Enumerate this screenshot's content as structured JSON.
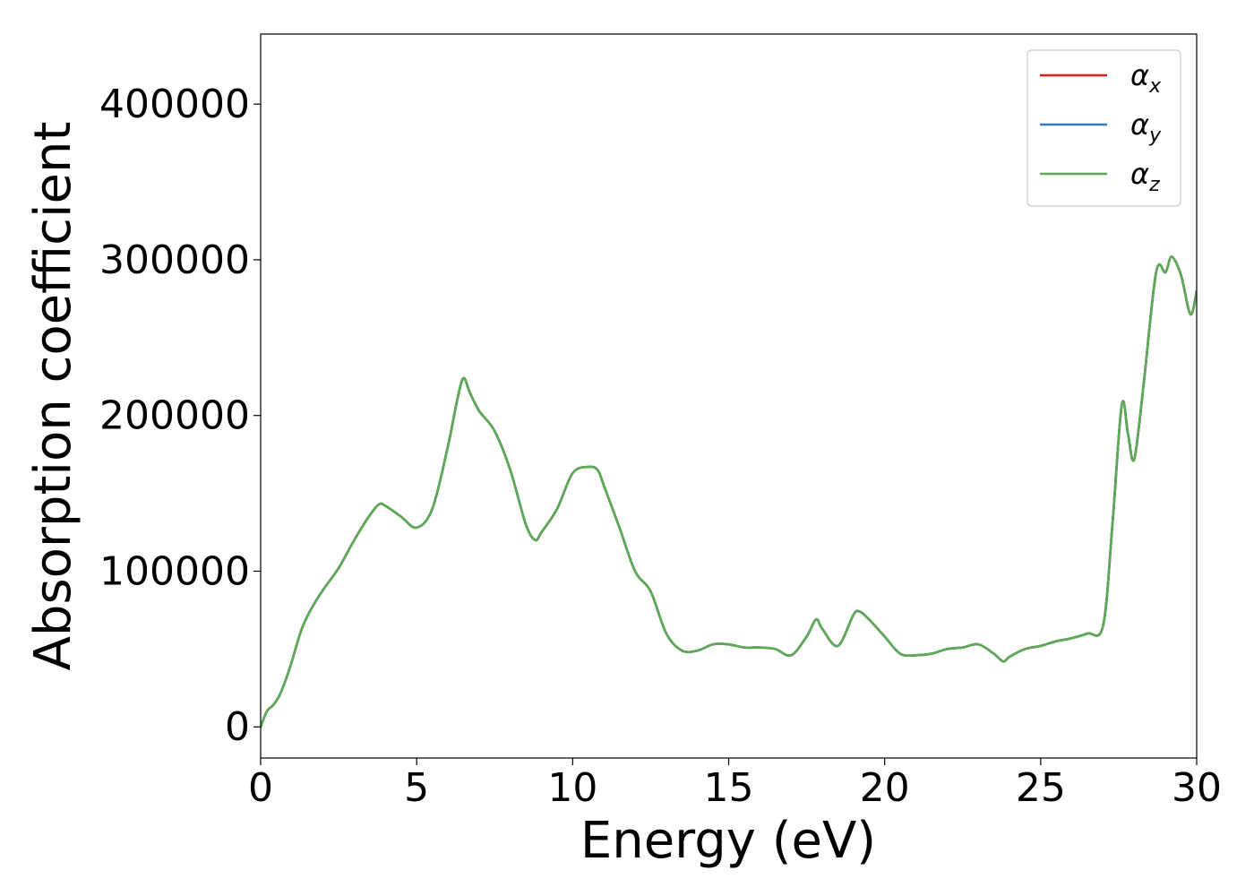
{
  "chart_data": {
    "type": "line",
    "xlabel": "Energy (eV)",
    "ylabel": "Absorption coefficient",
    "xlim": [
      0,
      30
    ],
    "ylim": [
      -20000,
      445000
    ],
    "xticks": [
      0,
      5,
      10,
      15,
      20,
      25,
      30
    ],
    "yticks": [
      0,
      100000,
      200000,
      300000,
      400000
    ],
    "grid": false,
    "legend_position": "top-right",
    "series": [
      {
        "name": "α",
        "subscript": "x",
        "color": "#e41a1c",
        "x": [
          0,
          0.2,
          0.4,
          0.6,
          0.8,
          1.0,
          1.3,
          1.6,
          2.0,
          2.5,
          3.0,
          3.5,
          3.8,
          4.0,
          4.5,
          5.0,
          5.5,
          6.0,
          6.3,
          6.5,
          6.7,
          7.0,
          7.5,
          8.0,
          8.5,
          8.8,
          9.0,
          9.5,
          10.0,
          10.5,
          10.8,
          11.0,
          11.5,
          12.0,
          12.5,
          13.0,
          13.5,
          14.0,
          14.5,
          15.0,
          15.5,
          16.0,
          16.5,
          17.0,
          17.5,
          17.8,
          18.0,
          18.5,
          19.0,
          19.2,
          19.5,
          20.0,
          20.5,
          21.0,
          21.5,
          22.0,
          22.5,
          23.0,
          23.5,
          23.8,
          24.0,
          24.5,
          25.0,
          25.5,
          26.0,
          26.5,
          27.0,
          27.3,
          27.6,
          27.8,
          28.0,
          28.3,
          28.7,
          29.0,
          29.2,
          29.5,
          29.8,
          30.0
        ],
        "y": [
          0,
          10000,
          14000,
          20000,
          30000,
          42000,
          62000,
          75000,
          88000,
          102000,
          120000,
          136000,
          143000,
          142000,
          135000,
          128000,
          140000,
          180000,
          210000,
          224000,
          215000,
          203000,
          190000,
          165000,
          130000,
          120000,
          125000,
          140000,
          163000,
          167000,
          165000,
          155000,
          128000,
          100000,
          87000,
          60000,
          49000,
          49000,
          53000,
          53000,
          51000,
          51000,
          50000,
          46000,
          58000,
          69000,
          63000,
          52000,
          72000,
          74000,
          69000,
          58000,
          47000,
          46000,
          47000,
          50000,
          51000,
          53000,
          47000,
          42000,
          45000,
          50000,
          52000,
          55000,
          57000,
          60000,
          65000,
          130000,
          207000,
          188000,
          172000,
          220000,
          292000,
          292000,
          302000,
          290000,
          265000,
          280000
        ]
      },
      {
        "name": "α",
        "subscript": "y",
        "color": "#377eb8",
        "x": [
          0,
          0.2,
          0.4,
          0.6,
          0.8,
          1.0,
          1.3,
          1.6,
          2.0,
          2.5,
          3.0,
          3.5,
          3.8,
          4.0,
          4.5,
          5.0,
          5.5,
          6.0,
          6.3,
          6.5,
          6.7,
          7.0,
          7.5,
          8.0,
          8.5,
          8.8,
          9.0,
          9.5,
          10.0,
          10.5,
          10.8,
          11.0,
          11.5,
          12.0,
          12.5,
          13.0,
          13.5,
          14.0,
          14.5,
          15.0,
          15.5,
          16.0,
          16.5,
          17.0,
          17.5,
          17.8,
          18.0,
          18.5,
          19.0,
          19.2,
          19.5,
          20.0,
          20.5,
          21.0,
          21.5,
          22.0,
          22.5,
          23.0,
          23.5,
          23.8,
          24.0,
          24.5,
          25.0,
          25.5,
          26.0,
          26.5,
          27.0,
          27.3,
          27.6,
          27.8,
          28.0,
          28.3,
          28.7,
          29.0,
          29.2,
          29.5,
          29.8,
          30.0
        ],
        "y": [
          0,
          10000,
          14000,
          20000,
          30000,
          42000,
          62000,
          75000,
          88000,
          102000,
          120000,
          136000,
          143000,
          142000,
          135000,
          128000,
          140000,
          180000,
          210000,
          224000,
          215000,
          203000,
          190000,
          165000,
          130000,
          120000,
          125000,
          140000,
          163000,
          167000,
          165000,
          155000,
          128000,
          100000,
          87000,
          60000,
          49000,
          49000,
          53000,
          53000,
          51000,
          51000,
          50000,
          46000,
          58000,
          69000,
          63000,
          52000,
          72000,
          74000,
          69000,
          58000,
          47000,
          46000,
          47000,
          50000,
          51000,
          53000,
          47000,
          42000,
          45000,
          50000,
          52000,
          55000,
          57000,
          60000,
          65000,
          130000,
          207000,
          188000,
          172000,
          220000,
          292000,
          292000,
          302000,
          290000,
          265000,
          280000
        ]
      },
      {
        "name": "α",
        "subscript": "z",
        "color": "#5daa55",
        "x": [
          0,
          0.2,
          0.4,
          0.6,
          0.8,
          1.0,
          1.3,
          1.6,
          2.0,
          2.5,
          3.0,
          3.5,
          3.8,
          4.0,
          4.5,
          5.0,
          5.5,
          6.0,
          6.3,
          6.5,
          6.7,
          7.0,
          7.5,
          8.0,
          8.5,
          8.8,
          9.0,
          9.5,
          10.0,
          10.5,
          10.8,
          11.0,
          11.5,
          12.0,
          12.5,
          13.0,
          13.5,
          14.0,
          14.5,
          15.0,
          15.5,
          16.0,
          16.5,
          17.0,
          17.5,
          17.8,
          18.0,
          18.5,
          19.0,
          19.2,
          19.5,
          20.0,
          20.5,
          21.0,
          21.5,
          22.0,
          22.5,
          23.0,
          23.5,
          23.8,
          24.0,
          24.5,
          25.0,
          25.5,
          26.0,
          26.5,
          27.0,
          27.3,
          27.6,
          27.8,
          28.0,
          28.3,
          28.7,
          29.0,
          29.2,
          29.5,
          29.8,
          30.0
        ],
        "y": [
          0,
          10000,
          14000,
          20000,
          30000,
          42000,
          62000,
          75000,
          88000,
          102000,
          120000,
          136000,
          143000,
          142000,
          135000,
          128000,
          140000,
          180000,
          210000,
          224000,
          215000,
          203000,
          190000,
          165000,
          130000,
          120000,
          125000,
          140000,
          163000,
          167000,
          165000,
          155000,
          128000,
          100000,
          87000,
          60000,
          49000,
          49000,
          53000,
          53000,
          51000,
          51000,
          50000,
          46000,
          58000,
          69000,
          63000,
          52000,
          72000,
          74000,
          69000,
          58000,
          47000,
          46000,
          47000,
          50000,
          51000,
          53000,
          47000,
          42000,
          45000,
          50000,
          52000,
          55000,
          57000,
          60000,
          65000,
          130000,
          207000,
          188000,
          172000,
          220000,
          292000,
          292000,
          302000,
          290000,
          265000,
          280000
        ]
      }
    ]
  }
}
